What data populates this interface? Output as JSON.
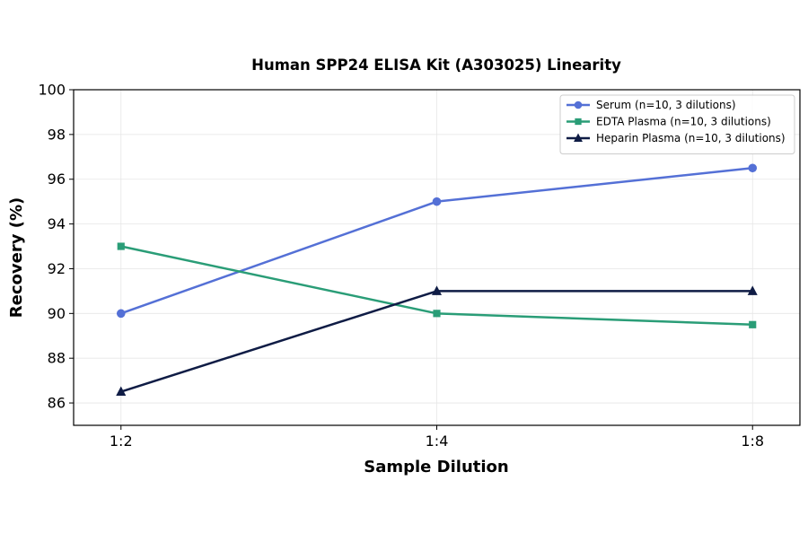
{
  "chart_data": {
    "type": "line",
    "title": "Human SPP24 ELISA Kit (A303025) Linearity",
    "xlabel": "Sample Dilution",
    "ylabel": "Recovery (%)",
    "categories": [
      "1:2",
      "1:4",
      "1:8"
    ],
    "ylim": [
      85,
      100
    ],
    "yticks": [
      86,
      88,
      90,
      92,
      94,
      96,
      98,
      100
    ],
    "grid": true,
    "legend_position": "top-right",
    "series": [
      {
        "name": "Serum (n=10, 3 dilutions)",
        "values": [
          90,
          95,
          96.5
        ],
        "color": "#5470d6",
        "marker": "circle"
      },
      {
        "name": "EDTA Plasma (n=10, 3 dilutions)",
        "values": [
          93,
          90,
          89.5
        ],
        "color": "#2a9d77",
        "marker": "square"
      },
      {
        "name": "Heparin Plasma (n=10, 3 dilutions)",
        "values": [
          86.5,
          91,
          91
        ],
        "color": "#0f1c45",
        "marker": "triangle"
      }
    ]
  }
}
